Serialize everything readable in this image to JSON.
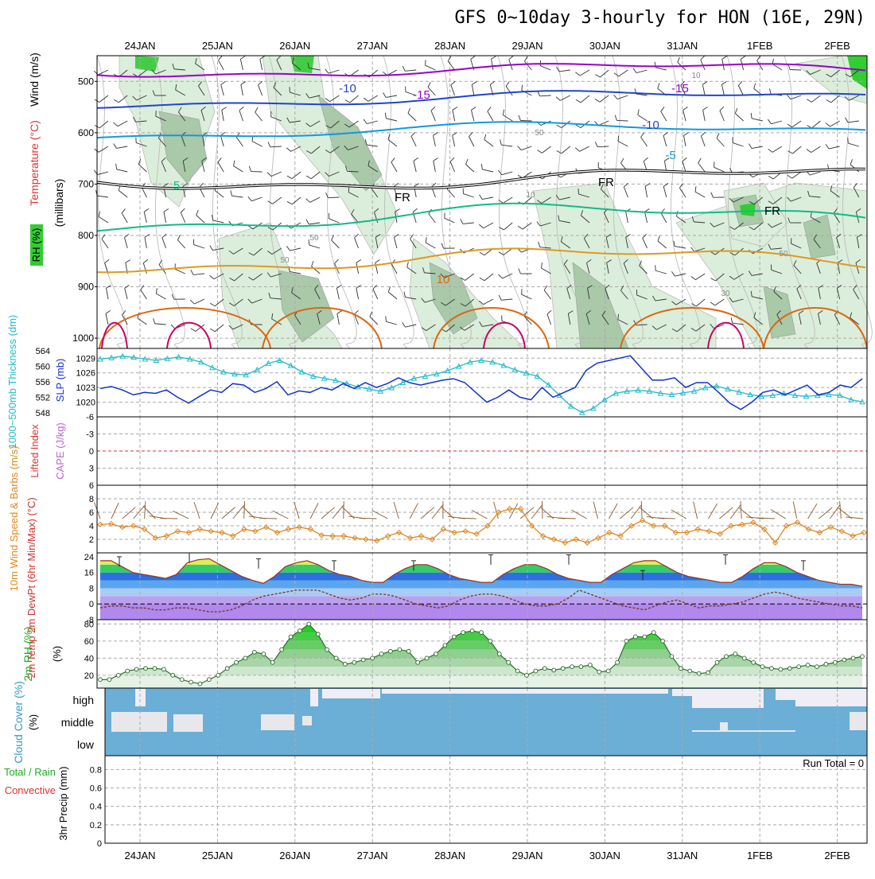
{
  "title": "GFS 0~10day 3-hourly for HON (16E, 29N)",
  "dates": [
    "24JAN",
    "25JAN",
    "26JAN",
    "27JAN",
    "28JAN",
    "29JAN",
    "30JAN",
    "31JAN",
    "1FEB",
    "2FEB"
  ],
  "run_total": "Run Total = 0",
  "colors": {
    "grid": "#aaaaaa",
    "rh_green": "#33cc33",
    "temp_purple": "#9900cc",
    "temp_blue": "#2244cc",
    "temp_cyan": "#1199dd",
    "temp_teal": "#11bb88",
    "temp_orange": "#dd9922",
    "temp_dark_orange": "#dd6611",
    "temp_magenta": "#cc0066",
    "slp": "#1133cc",
    "thickness": "#22bbcc",
    "wind10": "#dd8822",
    "cloud": "#6baed6",
    "cloud_light": "#f0eef5"
  },
  "chart_data": [
    {
      "type": "line",
      "name": "upper-air",
      "ylabel_rh": "RH (%)",
      "ylabel_temp": "Temperature (°C)",
      "ylabel_wind": "Wind (m/s)",
      "ylabel_pressure": "(millibars)",
      "yticks": [
        "500",
        "600",
        "700",
        "800",
        "900",
        "1000"
      ],
      "ylim": [
        450,
        1020
      ],
      "contour_labels": [
        "-10",
        "-15",
        "-15",
        "-10",
        "-5",
        "5",
        "FR",
        "FR",
        "FR",
        "10",
        "50",
        "50",
        "30",
        "10",
        "10",
        "50",
        "50"
      ]
    },
    {
      "type": "line",
      "name": "slp-thickness",
      "ylabel_thickness": "1000~500mb Thickness (dm)",
      "ylabel_slp": "SLP (mb)",
      "yticks_thickness": [
        "564",
        "560",
        "556",
        "552",
        "548"
      ],
      "yticks_slp": [
        "1029",
        "1026",
        "1023",
        "1020"
      ],
      "thickness_lim": [
        548,
        564
      ],
      "slp_lim": [
        1017,
        1031
      ],
      "thickness": [
        561.5,
        561.8,
        562.2,
        561.9,
        561.5,
        561.2,
        561.6,
        562.0,
        561.5,
        560.8,
        559.5,
        558.5,
        558.0,
        557.8,
        559.0,
        560.5,
        561.2,
        560.0,
        558.5,
        557.5,
        557.0,
        556.5,
        555.8,
        555.0,
        554.5,
        554.0,
        554.8,
        556.0,
        557.0,
        557.5,
        558.0,
        558.8,
        559.8,
        560.8,
        561.2,
        560.8,
        560.0,
        559.0,
        558.2,
        557.5,
        555.5,
        553.0,
        550.5,
        549.0,
        550.0,
        552.0,
        553.5,
        554.0,
        554.2,
        554.0,
        553.5,
        553.2,
        553.6,
        554.0,
        554.8,
        555.2,
        554.5,
        553.8,
        553.2,
        552.8,
        553.0,
        553.5,
        553.0,
        552.8,
        553.0,
        553.2,
        553.0,
        552.0,
        551.5
      ],
      "slp": [
        1022.8,
        1023.2,
        1022.5,
        1021.5,
        1022.0,
        1021.8,
        1022.5,
        1021.0,
        1019.8,
        1021.2,
        1022.5,
        1022.0,
        1023.8,
        1023.5,
        1022.0,
        1022.8,
        1024.2,
        1021.5,
        1022.3,
        1022.0,
        1023.0,
        1022.5,
        1023.8,
        1022.8,
        1024.0,
        1023.0,
        1023.8,
        1025.0,
        1024.0,
        1023.5,
        1024.0,
        1024.5,
        1024.8,
        1024.0,
        1022.0,
        1020.0,
        1021.0,
        1022.5,
        1021.0,
        1020.5,
        1023.0,
        1021.0,
        1022.0,
        1023.0,
        1026.5,
        1028.0,
        1028.5,
        1029.0,
        1029.5,
        1027.0,
        1024.5,
        1024.5,
        1025.0,
        1023.0,
        1024.0,
        1024.0,
        1022.0,
        1019.8,
        1018.5,
        1020.0,
        1022.0,
        1022.5,
        1021.5,
        1022.5,
        1023.5,
        1021.5,
        1022.0,
        1023.5,
        1023.0,
        1024.8
      ]
    },
    {
      "type": "line",
      "name": "stability",
      "ylabel_li": "Lifted Index",
      "ylabel_cape": "CAPE (J/kg)",
      "yticks": [
        "-6",
        "-3",
        "0",
        "3",
        "6"
      ],
      "ylim": [
        -6,
        6
      ]
    },
    {
      "type": "line",
      "name": "wind10m",
      "ylabel": "10m Wind Speed & Barbs (m/s)",
      "yticks": [
        "2",
        "4",
        "6",
        "8"
      ],
      "ylim": [
        0,
        10
      ],
      "speed": [
        4.2,
        4.3,
        3.8,
        4.0,
        3.5,
        2.2,
        2.5,
        3.2,
        3.0,
        3.5,
        3.2,
        3.0,
        2.5,
        3.5,
        3.2,
        3.8,
        3.0,
        3.5,
        3.8,
        3.5,
        2.6,
        2.5,
        2.5,
        2.2,
        2.0,
        1.8,
        2.5,
        3.0,
        2.2,
        2.5,
        2.0,
        3.5,
        3.0,
        3.2,
        2.8,
        4.0,
        6.0,
        6.5,
        6.5,
        4.0,
        2.5,
        2.0,
        1.5,
        2.0,
        1.5,
        2.2,
        3.0,
        2.5,
        4.0,
        4.8,
        4.0,
        4.0,
        3.0,
        3.0,
        3.5,
        3.2,
        2.8,
        4.0,
        4.2,
        4.5,
        3.5,
        1.5,
        4.0,
        4.5,
        3.5,
        3.0,
        3.8,
        3.2,
        2.5,
        3.0
      ]
    },
    {
      "type": "area",
      "name": "temp2m",
      "ylabel": "2m Temp 2m DewPt (6hr Min/Max) (°C)",
      "yticks": [
        "24",
        "16",
        "8",
        "0",
        "-8"
      ],
      "ylim": [
        -8,
        26
      ],
      "temp": [
        22,
        22,
        19,
        16,
        15,
        14,
        13,
        15,
        21,
        22.5,
        23,
        20,
        17,
        14,
        12,
        10.5,
        14,
        19,
        21,
        22,
        20,
        17,
        15,
        14,
        12,
        11,
        11,
        15,
        18,
        20,
        20,
        18,
        15,
        13,
        12,
        11,
        11,
        15,
        18,
        20,
        20,
        18,
        15,
        13,
        12,
        11,
        11,
        15,
        18,
        21,
        22,
        22,
        19,
        16,
        14,
        13,
        12,
        11,
        11,
        14,
        18,
        21,
        21,
        19,
        16,
        14,
        12,
        11,
        10,
        10,
        9
      ],
      "dewpt": [
        -2,
        -1,
        -1,
        -2,
        -2,
        -3,
        -3,
        -2,
        -2,
        -3,
        -4,
        -4,
        -3,
        -1,
        2,
        4,
        5,
        6,
        7,
        7,
        7,
        5,
        3,
        2,
        3,
        5,
        5,
        4,
        2,
        0,
        -1,
        -2,
        -1,
        2,
        4,
        5,
        5,
        4,
        2,
        0,
        -1,
        -1,
        0,
        3,
        7,
        5,
        3,
        1,
        -1,
        -2,
        -3,
        -1,
        1,
        2,
        0,
        -2,
        -1,
        -1,
        0,
        1,
        3,
        5,
        6,
        5,
        3,
        2,
        1,
        0,
        -1,
        -1,
        -2
      ]
    },
    {
      "type": "area",
      "name": "rh2m",
      "ylabel": "2m RH (%)",
      "yticks": [
        "20",
        "40",
        "60",
        "80"
      ],
      "ylim": [
        5,
        85
      ],
      "values": [
        15,
        15,
        20,
        25,
        27,
        28,
        28,
        27,
        20,
        15,
        12,
        10,
        15,
        20,
        28,
        35,
        40,
        47,
        45,
        35,
        50,
        65,
        72,
        80,
        68,
        50,
        40,
        33,
        35,
        38,
        40,
        45,
        48,
        50,
        48,
        35,
        40,
        45,
        55,
        65,
        70,
        72,
        70,
        60,
        45,
        35,
        25,
        20,
        25,
        28,
        26,
        28,
        30,
        30,
        32,
        24,
        25,
        35,
        60,
        65,
        65,
        70,
        60,
        42,
        28,
        25,
        22,
        23,
        35,
        42,
        45,
        40,
        35,
        30,
        28,
        27,
        28,
        30,
        32,
        30,
        33,
        35,
        38,
        40,
        42
      ]
    },
    {
      "type": "heatmap",
      "name": "cloud-cover",
      "ylabel": "Cloud Cover (%)",
      "levels": [
        "high",
        "middle",
        "low"
      ]
    },
    {
      "type": "bar",
      "name": "precip",
      "ylabel": "3hr Precip (mm)",
      "ylabel2": "Total / Rain",
      "ylabel3": "Convective",
      "yticks": [
        "0",
        "0.2",
        "0.4",
        "0.6",
        "0.8"
      ],
      "ylim": [
        0,
        0.95
      ]
    }
  ]
}
